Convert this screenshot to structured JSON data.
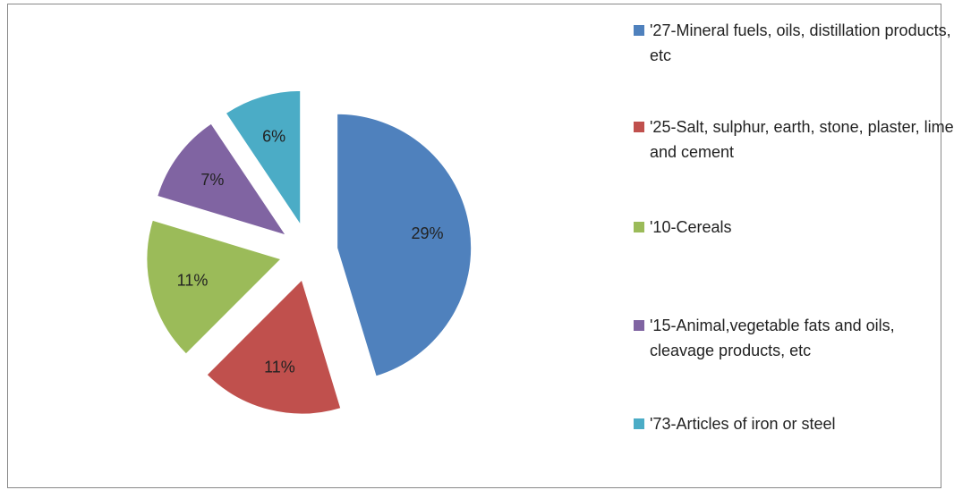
{
  "chart_data": {
    "type": "pie",
    "categories": [
      "'27-Mineral fuels, oils, distillation products, etc",
      "'25-Salt, sulphur, earth, stone, plaster, lime and cement",
      "'10-Cereals",
      "'15-Animal,vegetable fats and oils, cleavage products, etc",
      "'73-Articles of iron or steel"
    ],
    "values": [
      29,
      11,
      11,
      7,
      6
    ],
    "value_labels": [
      "29%",
      "11%",
      "11%",
      "7%",
      "6%"
    ],
    "colors": [
      "#4f81bd",
      "#c0504d",
      "#9bbb59",
      "#8064a2",
      "#4bacc6"
    ],
    "legend": "right"
  }
}
